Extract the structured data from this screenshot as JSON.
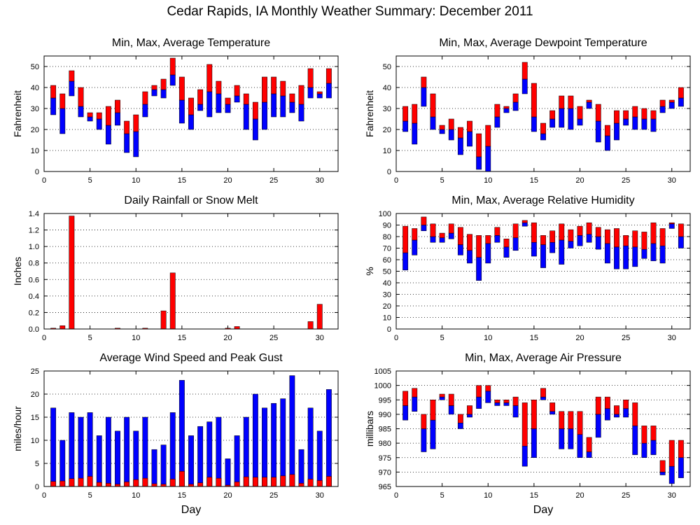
{
  "page_title": "Cedar Rapids, IA Monthly Weather Summary: December 2011",
  "colors": {
    "min_series": "#0000ff",
    "max_series": "#ff0000",
    "grid": "#000000"
  },
  "chart_data": [
    {
      "id": "temperature",
      "type": "bar",
      "title": "Min, Max, Average Temperature",
      "xlabel": "",
      "ylabel": "Fahrenheit",
      "xlim": [
        0,
        32
      ],
      "ylim": [
        0,
        55
      ],
      "xticks": [
        0,
        5,
        10,
        15,
        20,
        25,
        30
      ],
      "yticks": [
        0,
        10,
        20,
        30,
        40,
        50
      ],
      "grid": true,
      "days": [
        1,
        2,
        3,
        4,
        5,
        6,
        7,
        8,
        9,
        10,
        11,
        12,
        13,
        14,
        15,
        16,
        17,
        18,
        19,
        20,
        21,
        22,
        23,
        24,
        25,
        26,
        27,
        28,
        29,
        30,
        31
      ],
      "series": [
        {
          "name": "",
          "stat": "min",
          "values": [
            27,
            18,
            36,
            26,
            24,
            20,
            13,
            22,
            9,
            7,
            26,
            36,
            35,
            41,
            23,
            20,
            29,
            26,
            28,
            28,
            33,
            20,
            15,
            20,
            26,
            26,
            28,
            24,
            35,
            35,
            35
          ]
        },
        {
          "name": "",
          "stat": "avg",
          "values": [
            35,
            30,
            43,
            31,
            26,
            25,
            22,
            28,
            18,
            19,
            32,
            39,
            39,
            46,
            34,
            27,
            32,
            38,
            37,
            32,
            36,
            32,
            25,
            33,
            37,
            36,
            33,
            32,
            40,
            37,
            42
          ]
        },
        {
          "name": "",
          "stat": "max",
          "values": [
            41,
            37,
            48,
            40,
            28,
            28,
            31,
            34,
            24,
            27,
            38,
            41,
            44,
            54,
            45,
            35,
            39,
            51,
            43,
            35,
            41,
            37,
            33,
            45,
            45,
            43,
            37,
            41,
            49,
            38,
            49
          ]
        }
      ]
    },
    {
      "id": "dewpoint",
      "type": "bar",
      "title": "Min, Max, Average Dewpoint Temperature",
      "xlabel": "",
      "ylabel": "Fahrenheit",
      "xlim": [
        0,
        32
      ],
      "ylim": [
        0,
        55
      ],
      "xticks": [
        0,
        5,
        10,
        15,
        20,
        25,
        30
      ],
      "yticks": [
        0,
        10,
        20,
        30,
        40,
        50
      ],
      "grid": true,
      "days": [
        1,
        2,
        3,
        4,
        5,
        6,
        7,
        8,
        9,
        10,
        11,
        12,
        13,
        14,
        15,
        16,
        17,
        18,
        19,
        20,
        21,
        22,
        23,
        24,
        25,
        26,
        27,
        28,
        29,
        30,
        31
      ],
      "series": [
        {
          "name": "",
          "stat": "min",
          "values": [
            19,
            13,
            31,
            20,
            18,
            15,
            8,
            12,
            1,
            0,
            21,
            28,
            29,
            37,
            19,
            15,
            21,
            21,
            20,
            22,
            30,
            14,
            10,
            15,
            22,
            20,
            20,
            19,
            28,
            30,
            31
          ]
        },
        {
          "name": "",
          "stat": "avg",
          "values": [
            24,
            23,
            40,
            26,
            20,
            20,
            16,
            19,
            7,
            12,
            26,
            30,
            33,
            44,
            26,
            18,
            25,
            30,
            30,
            25,
            33,
            24,
            17,
            23,
            25,
            26,
            25,
            25,
            31,
            33,
            35
          ]
        },
        {
          "name": "",
          "stat": "max",
          "values": [
            31,
            32,
            45,
            37,
            22,
            25,
            21,
            24,
            18,
            22,
            32,
            31,
            37,
            52,
            42,
            23,
            29,
            36,
            36,
            31,
            34,
            32,
            22,
            29,
            29,
            31,
            30,
            29,
            34,
            34,
            40
          ]
        }
      ]
    },
    {
      "id": "precip",
      "type": "bar",
      "title": "Daily Rainfall or Snow Melt",
      "xlabel": "",
      "ylabel": "Inches",
      "xlim": [
        0,
        32
      ],
      "ylim": [
        0,
        1.4
      ],
      "xticks": [
        0,
        5,
        10,
        15,
        20,
        25,
        30
      ],
      "yticks": [
        0,
        0.2,
        0.4,
        0.6,
        0.8,
        1.0,
        1.2,
        1.4
      ],
      "ytick_labels": [
        "0.0",
        "0.2",
        "0.4",
        "0.6",
        "0.8",
        "1.0",
        "1.2",
        "1.4"
      ],
      "grid": true,
      "days": [
        1,
        2,
        3,
        4,
        5,
        6,
        7,
        8,
        9,
        10,
        11,
        12,
        13,
        14,
        15,
        16,
        17,
        18,
        19,
        20,
        21,
        22,
        23,
        24,
        25,
        26,
        27,
        28,
        29,
        30,
        31
      ],
      "series": [
        {
          "name": "",
          "stat": "precip",
          "values": [
            0.01,
            0.04,
            1.37,
            0,
            0,
            0,
            0,
            0.01,
            0,
            0,
            0.01,
            0,
            0.22,
            0.68,
            0,
            0,
            0,
            0,
            0,
            0.01,
            0.03,
            0,
            0,
            0,
            0,
            0,
            0,
            0,
            0.09,
            0.3,
            0
          ]
        }
      ]
    },
    {
      "id": "humidity",
      "type": "bar",
      "title": "Min, Max, Average Relative Humidity",
      "xlabel": "",
      "ylabel": "%",
      "xlim": [
        0,
        32
      ],
      "ylim": [
        0,
        100
      ],
      "xticks": [
        0,
        5,
        10,
        15,
        20,
        25,
        30
      ],
      "yticks": [
        0,
        10,
        20,
        30,
        40,
        50,
        60,
        70,
        80,
        90,
        100
      ],
      "grid": true,
      "days": [
        1,
        2,
        3,
        4,
        5,
        6,
        7,
        8,
        9,
        10,
        11,
        12,
        13,
        14,
        15,
        16,
        17,
        18,
        19,
        20,
        21,
        22,
        23,
        24,
        25,
        26,
        27,
        28,
        29,
        30,
        31
      ],
      "series": [
        {
          "name": "",
          "stat": "min",
          "values": [
            51,
            64,
            85,
            75,
            75,
            78,
            64,
            57,
            42,
            57,
            75,
            62,
            68,
            89,
            63,
            53,
            66,
            56,
            70,
            72,
            75,
            69,
            57,
            52,
            52,
            54,
            61,
            59,
            57,
            87,
            70
          ]
        },
        {
          "name": "",
          "stat": "avg",
          "values": [
            66,
            77,
            90,
            80,
            79,
            83,
            73,
            68,
            62,
            74,
            81,
            71,
            79,
            92,
            75,
            73,
            75,
            77,
            76,
            81,
            82,
            80,
            74,
            71,
            72,
            71,
            69,
            74,
            72,
            91,
            80
          ]
        },
        {
          "name": "",
          "stat": "max",
          "values": [
            89,
            87,
            97,
            91,
            83,
            91,
            88,
            82,
            81,
            81,
            88,
            78,
            91,
            94,
            92,
            81,
            85,
            91,
            86,
            89,
            92,
            88,
            86,
            87,
            81,
            85,
            84,
            92,
            87,
            92,
            91
          ]
        }
      ]
    },
    {
      "id": "wind",
      "type": "bar",
      "title": "Average Wind Speed and Peak Gust",
      "xlabel": "Day",
      "ylabel": "miles/hour",
      "xlim": [
        0,
        32
      ],
      "ylim": [
        0,
        25
      ],
      "xticks": [
        0,
        5,
        10,
        15,
        20,
        25,
        30
      ],
      "yticks": [
        0,
        5,
        10,
        15,
        20,
        25
      ],
      "grid": true,
      "days": [
        1,
        2,
        3,
        4,
        5,
        6,
        7,
        8,
        9,
        10,
        11,
        12,
        13,
        14,
        15,
        16,
        17,
        18,
        19,
        20,
        21,
        22,
        23,
        24,
        25,
        26,
        27,
        28,
        29,
        30,
        31
      ],
      "series": [
        {
          "name": "",
          "stat": "avg_speed",
          "values": [
            1.1,
            1.2,
            1.7,
            1.8,
            2.2,
            0.9,
            0.7,
            0.5,
            1.0,
            1.5,
            1.8,
            0.6,
            0.5,
            1.6,
            3.3,
            0.5,
            0.8,
            2.0,
            1.8,
            0.3,
            1.0,
            2.1,
            2.0,
            2.0,
            2.0,
            2.3,
            2.6,
            0.7,
            1.6,
            1.3,
            2.2
          ]
        },
        {
          "name": "",
          "stat": "peak_gust",
          "values": [
            17,
            10,
            16,
            15,
            16,
            11,
            15,
            12,
            15,
            12,
            15,
            8,
            9,
            16,
            23,
            11,
            13,
            14,
            15,
            6,
            11,
            15,
            20,
            17,
            18,
            19,
            24,
            8,
            17,
            12,
            21
          ]
        }
      ]
    },
    {
      "id": "pressure",
      "type": "bar",
      "title": "Min, Max, Average Air Pressure",
      "xlabel": "Day",
      "ylabel": "millibars",
      "xlim": [
        0,
        32
      ],
      "ylim": [
        965,
        1005
      ],
      "xticks": [
        0,
        5,
        10,
        15,
        20,
        25,
        30
      ],
      "yticks": [
        965,
        970,
        975,
        980,
        985,
        990,
        995,
        1000,
        1005
      ],
      "grid": true,
      "days": [
        1,
        2,
        3,
        4,
        5,
        6,
        7,
        8,
        9,
        10,
        11,
        12,
        13,
        14,
        15,
        16,
        17,
        18,
        19,
        20,
        21,
        22,
        23,
        24,
        25,
        26,
        27,
        28,
        29,
        30,
        31
      ],
      "series": [
        {
          "name": "",
          "stat": "min",
          "values": [
            988,
            991,
            977,
            978,
            995,
            990,
            985,
            989,
            992,
            994,
            993,
            993,
            989,
            972,
            975,
            995,
            990,
            978,
            978,
            975,
            975,
            982,
            988,
            989,
            989,
            976,
            975,
            976,
            969,
            966,
            968
          ]
        },
        {
          "name": "",
          "stat": "avg",
          "values": [
            993,
            996,
            985,
            988,
            996,
            993,
            987,
            990,
            996,
            998,
            994,
            994,
            993,
            979,
            985,
            996,
            991,
            985,
            985,
            983,
            977,
            990,
            992,
            990,
            992,
            986,
            980,
            981,
            970,
            972,
            975
          ]
        },
        {
          "name": "",
          "stat": "max",
          "values": [
            998,
            999,
            990,
            995,
            997,
            997,
            990,
            993,
            1000,
            1000,
            995,
            995,
            996,
            994,
            995,
            999,
            994,
            991,
            991,
            991,
            982,
            996,
            996,
            993,
            995,
            994,
            986,
            986,
            974,
            981,
            981
          ]
        }
      ]
    }
  ]
}
